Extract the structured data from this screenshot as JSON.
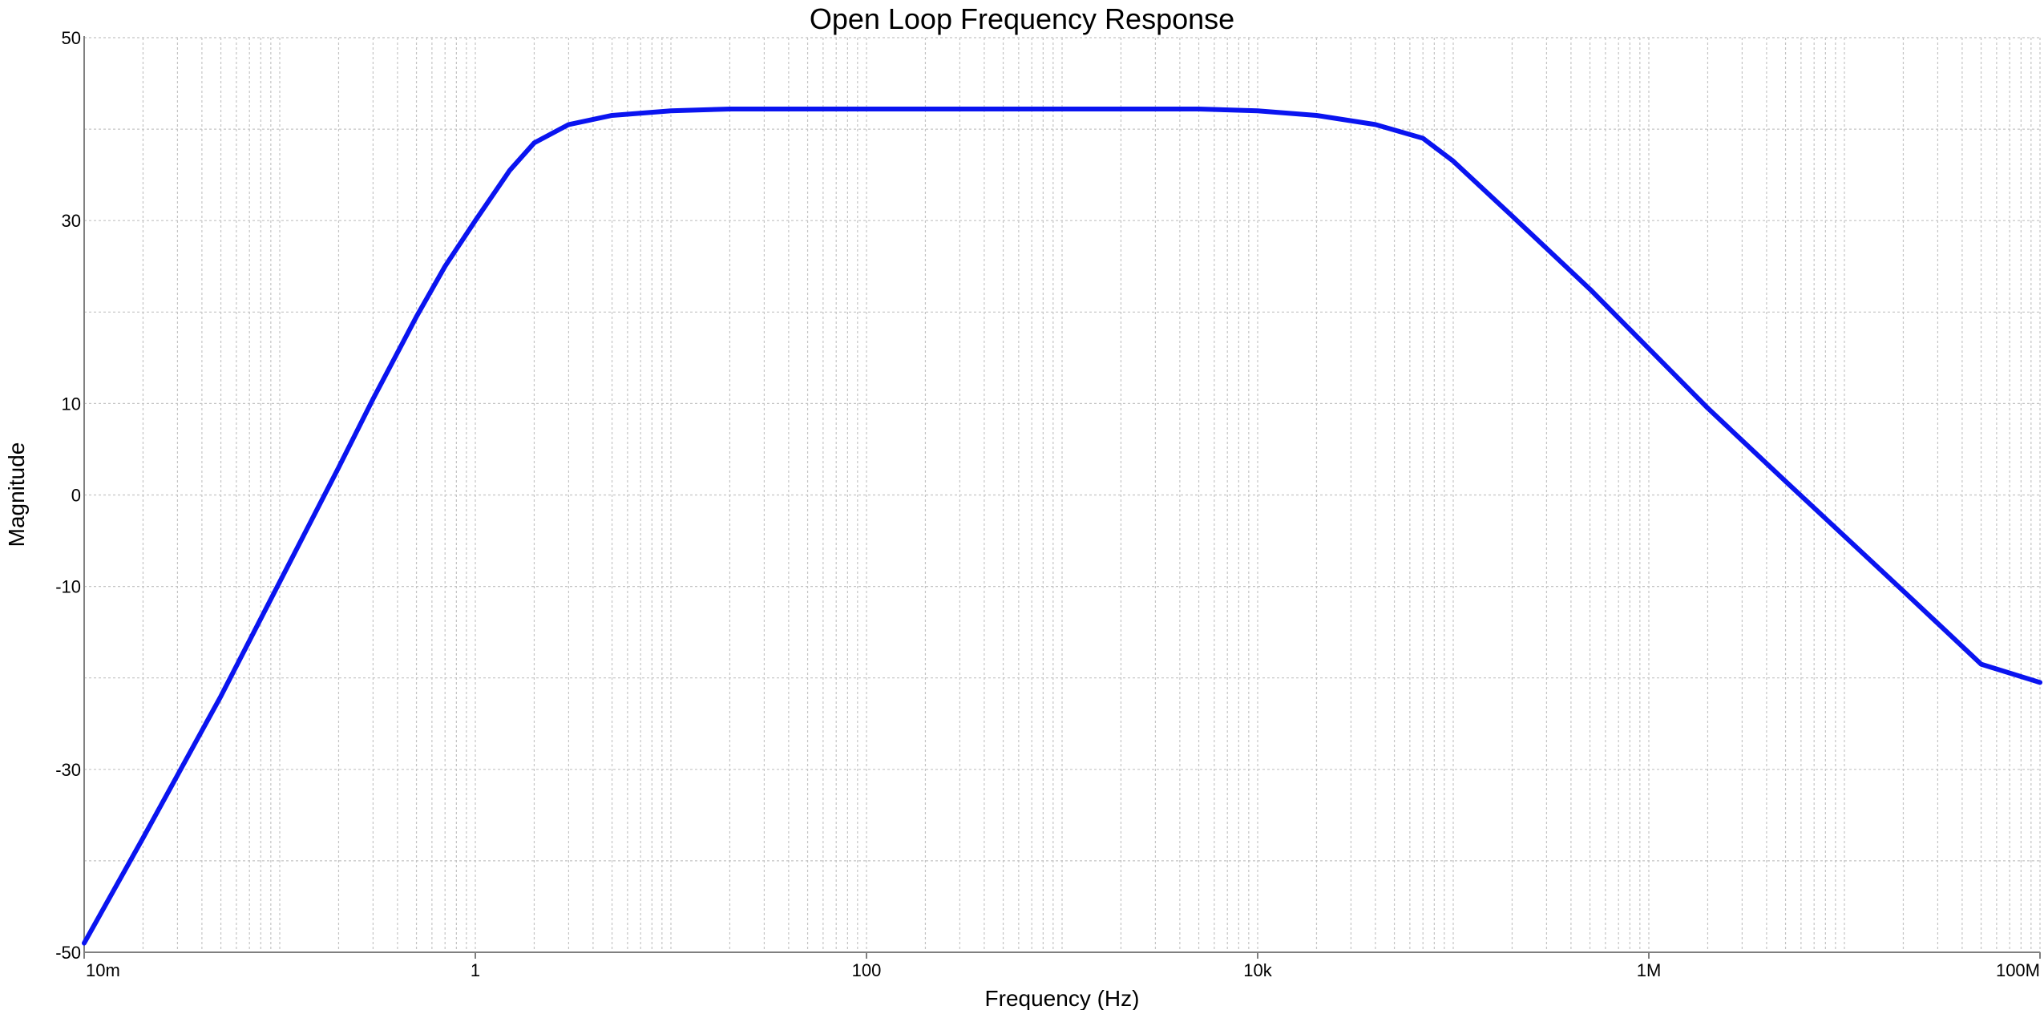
{
  "chart_data": {
    "type": "line",
    "title": "Open Loop Frequency Response",
    "xlabel": "Frequency (Hz)",
    "ylabel": "Magnitude",
    "x_scale": "log",
    "xlim": [
      0.01,
      100000000
    ],
    "ylim": [
      -50,
      50
    ],
    "x_ticks": [
      {
        "value": 0.01,
        "label": "10m"
      },
      {
        "value": 1,
        "label": "1"
      },
      {
        "value": 100,
        "label": "100"
      },
      {
        "value": 10000,
        "label": "10k"
      },
      {
        "value": 1000000,
        "label": "1M"
      },
      {
        "value": 100000000,
        "label": "100M"
      }
    ],
    "y_ticks": [
      {
        "value": 50,
        "label": "50"
      },
      {
        "value": 30,
        "label": "30"
      },
      {
        "value": 10,
        "label": "10"
      },
      {
        "value": 0,
        "label": "0"
      },
      {
        "value": -10,
        "label": "-10"
      },
      {
        "value": -30,
        "label": "-30"
      },
      {
        "value": -50,
        "label": "-50"
      }
    ],
    "grid": true,
    "series": [
      {
        "color": "#0a14f0",
        "x": [
          0.01,
          0.02,
          0.05,
          0.1,
          0.2,
          0.3,
          0.5,
          0.7,
          1,
          1.5,
          2,
          3,
          5,
          10,
          20,
          50,
          100,
          1000,
          5000,
          10000,
          20000,
          40000,
          70000,
          100000,
          200000,
          500000,
          1000000,
          2000000,
          5000000,
          10000000,
          20000000,
          50000000,
          100000000
        ],
        "values": [
          -49,
          -37.5,
          -22,
          -9.5,
          3,
          10.5,
          19.5,
          25,
          30,
          35.5,
          38.5,
          40.5,
          41.5,
          42,
          42.2,
          42.2,
          42.2,
          42.2,
          42.2,
          42,
          41.5,
          40.5,
          39,
          36.5,
          30.5,
          22.5,
          16,
          9.5,
          1.5,
          -4.5,
          -10.5,
          -18.5,
          -20.5
        ]
      }
    ]
  }
}
